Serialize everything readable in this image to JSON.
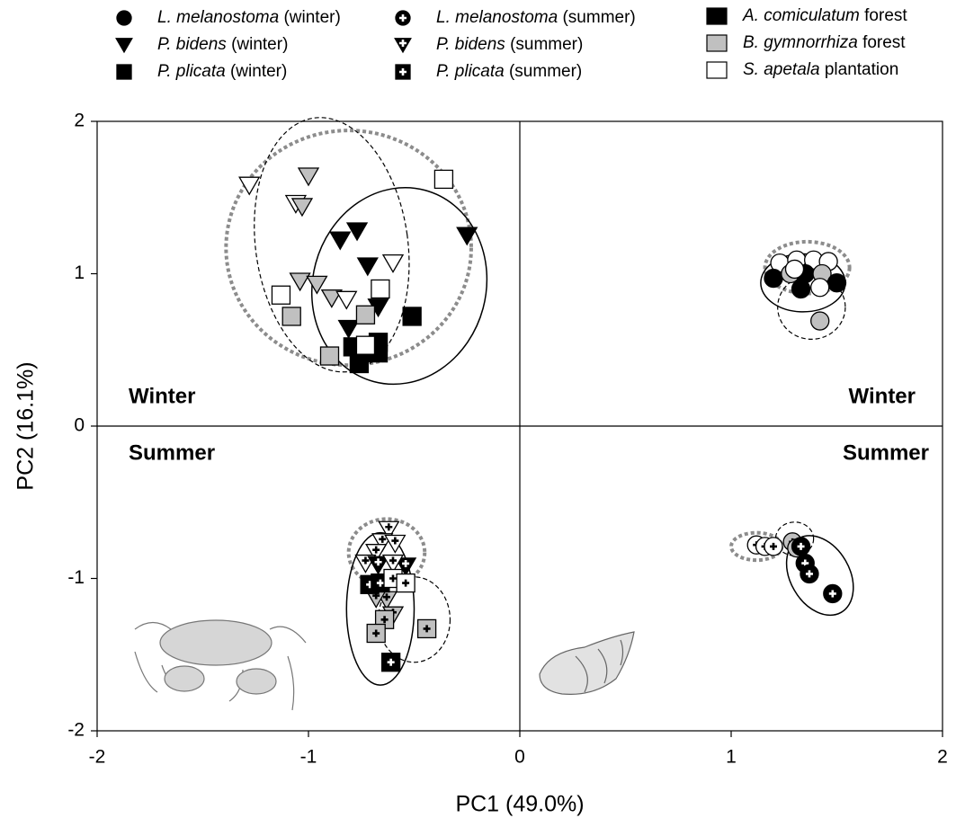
{
  "chart_data": {
    "type": "scatter",
    "x_label": "PC1 (49.0%)",
    "y_label": "PC2 (16.1%)",
    "xlim": [
      -2,
      2
    ],
    "xticks": [
      -2,
      -1,
      0,
      1,
      2
    ],
    "ylim": [
      -2,
      2
    ],
    "yticks": [
      -2,
      -1,
      0,
      1,
      2
    ],
    "zero_lines": true,
    "annotations": [
      "Winter",
      "Winter",
      "Summer",
      "Summer"
    ],
    "habitats": [
      {
        "species": "A. comiculatum",
        "kind": "forest",
        "color": "#000000"
      },
      {
        "species": "B. gymnorrhiza",
        "kind": "forest",
        "color": "#c0c0c0"
      },
      {
        "species": "S. apetala",
        "kind": "plantation",
        "color": "#ffffff"
      }
    ],
    "series": [
      {
        "species": "L. melanostoma",
        "season": "(winter)",
        "marker": "circle",
        "plus": false,
        "points": [
          {
            "x": 1.23,
            "y": 1.07,
            "habitat": 2
          },
          {
            "x": 1.31,
            "y": 1.09,
            "habitat": 2
          },
          {
            "x": 1.39,
            "y": 1.09,
            "habitat": 2
          },
          {
            "x": 1.46,
            "y": 1.08,
            "habitat": 2
          },
          {
            "x": 1.2,
            "y": 0.97,
            "habitat": 0
          },
          {
            "x": 1.28,
            "y": 1.0,
            "habitat": 1
          },
          {
            "x": 1.35,
            "y": 1.0,
            "habitat": 0
          },
          {
            "x": 1.43,
            "y": 1.0,
            "habitat": 1
          },
          {
            "x": 1.5,
            "y": 0.94,
            "habitat": 0
          },
          {
            "x": 1.33,
            "y": 0.9,
            "habitat": 0
          },
          {
            "x": 1.42,
            "y": 0.91,
            "habitat": 2
          },
          {
            "x": 1.3,
            "y": 1.03,
            "habitat": 2
          },
          {
            "x": 1.42,
            "y": 0.69,
            "habitat": 1
          }
        ]
      },
      {
        "species": "L. melanostoma",
        "season": "(summer)",
        "marker": "circle",
        "plus": true,
        "points": [
          {
            "x": 1.12,
            "y": -0.78,
            "habitat": 2
          },
          {
            "x": 1.16,
            "y": -0.79,
            "habitat": 2
          },
          {
            "x": 1.2,
            "y": -0.79,
            "habitat": 2
          },
          {
            "x": 1.29,
            "y": -0.76,
            "habitat": 1
          },
          {
            "x": 1.31,
            "y": -0.8,
            "habitat": 1
          },
          {
            "x": 1.33,
            "y": -0.79,
            "habitat": 0
          },
          {
            "x": 1.35,
            "y": -0.9,
            "habitat": 0
          },
          {
            "x": 1.37,
            "y": -0.97,
            "habitat": 0
          },
          {
            "x": 1.48,
            "y": -1.1,
            "habitat": 0
          }
        ]
      },
      {
        "species": "P. bidens",
        "season": "(winter)",
        "marker": "triangle",
        "plus": false,
        "points": [
          {
            "x": -1.28,
            "y": 1.58,
            "habitat": 2
          },
          {
            "x": -1.0,
            "y": 1.64,
            "habitat": 1
          },
          {
            "x": -1.06,
            "y": 1.46,
            "habitat": 2
          },
          {
            "x": -1.03,
            "y": 1.44,
            "habitat": 1
          },
          {
            "x": -1.04,
            "y": 0.95,
            "habitat": 1
          },
          {
            "x": -0.96,
            "y": 0.93,
            "habitat": 1
          },
          {
            "x": -0.89,
            "y": 0.84,
            "habitat": 1
          },
          {
            "x": -0.82,
            "y": 0.83,
            "habitat": 2
          },
          {
            "x": -0.6,
            "y": 1.07,
            "habitat": 2
          },
          {
            "x": -0.85,
            "y": 1.22,
            "habitat": 0
          },
          {
            "x": -0.77,
            "y": 1.28,
            "habitat": 0
          },
          {
            "x": -0.72,
            "y": 1.05,
            "habitat": 0
          },
          {
            "x": -0.67,
            "y": 0.78,
            "habitat": 0
          },
          {
            "x": -0.81,
            "y": 0.64,
            "habitat": 0
          },
          {
            "x": -0.25,
            "y": 1.25,
            "habitat": 0
          }
        ]
      },
      {
        "species": "P. bidens",
        "season": "(summer)",
        "marker": "triangle",
        "plus": true,
        "points": [
          {
            "x": -0.62,
            "y": -0.68,
            "habitat": 2
          },
          {
            "x": -0.65,
            "y": -0.76,
            "habitat": 2
          },
          {
            "x": -0.59,
            "y": -0.77,
            "habitat": 2
          },
          {
            "x": -0.68,
            "y": -0.83,
            "habitat": 2
          },
          {
            "x": -0.73,
            "y": -0.9,
            "habitat": 2
          },
          {
            "x": -0.67,
            "y": -0.91,
            "habitat": 0
          },
          {
            "x": -0.54,
            "y": -0.92,
            "habitat": 0
          },
          {
            "x": -0.6,
            "y": -0.9,
            "habitat": 2
          },
          {
            "x": -0.63,
            "y": -1.14,
            "habitat": 1
          },
          {
            "x": -0.6,
            "y": -1.24,
            "habitat": 1
          },
          {
            "x": -0.68,
            "y": -1.13,
            "habitat": 1
          }
        ]
      },
      {
        "species": "P. plicata",
        "season": "(winter)",
        "marker": "square",
        "plus": false,
        "points": [
          {
            "x": -0.36,
            "y": 1.62,
            "habitat": 2
          },
          {
            "x": -1.13,
            "y": 0.86,
            "habitat": 2
          },
          {
            "x": -0.66,
            "y": 0.9,
            "habitat": 2
          },
          {
            "x": -1.08,
            "y": 0.72,
            "habitat": 1
          },
          {
            "x": -0.73,
            "y": 0.73,
            "habitat": 1
          },
          {
            "x": -0.9,
            "y": 0.46,
            "habitat": 1
          },
          {
            "x": -0.51,
            "y": 0.72,
            "habitat": 0
          },
          {
            "x": -0.79,
            "y": 0.52,
            "habitat": 0
          },
          {
            "x": -0.67,
            "y": 0.55,
            "habitat": 0
          },
          {
            "x": -0.76,
            "y": 0.41,
            "habitat": 0
          },
          {
            "x": -0.67,
            "y": 0.48,
            "habitat": 0
          },
          {
            "x": -0.73,
            "y": 0.53,
            "habitat": 2
          }
        ]
      },
      {
        "species": "P. plicata",
        "season": "(summer)",
        "marker": "square",
        "plus": true,
        "points": [
          {
            "x": -0.71,
            "y": -1.04,
            "habitat": 0
          },
          {
            "x": -0.66,
            "y": -1.03,
            "habitat": 0
          },
          {
            "x": -0.6,
            "y": -1.0,
            "habitat": 2
          },
          {
            "x": -0.54,
            "y": -1.03,
            "habitat": 2
          },
          {
            "x": -0.64,
            "y": -1.27,
            "habitat": 1
          },
          {
            "x": -0.68,
            "y": -1.36,
            "habitat": 1
          },
          {
            "x": -0.44,
            "y": -1.33,
            "habitat": 1
          },
          {
            "x": -0.61,
            "y": -1.55,
            "habitat": 0
          }
        ]
      }
    ],
    "ellipses": [
      {
        "cx": -0.81,
        "cy": 1.17,
        "rx": 0.58,
        "ry": 0.77,
        "angle": 0,
        "style": "dotted"
      },
      {
        "cx": -0.89,
        "cy": 1.19,
        "rx": 0.36,
        "ry": 0.84,
        "angle": -8,
        "style": "dashed"
      },
      {
        "cx": -0.57,
        "cy": 0.92,
        "rx": 0.41,
        "ry": 0.65,
        "angle": 15,
        "style": "solid"
      },
      {
        "cx": 1.36,
        "cy": 1.04,
        "rx": 0.2,
        "ry": 0.17,
        "angle": 0,
        "style": "dotted"
      },
      {
        "cx": 1.34,
        "cy": 0.94,
        "rx": 0.2,
        "ry": 0.19,
        "angle": 0,
        "style": "solid"
      },
      {
        "cx": 1.38,
        "cy": 0.78,
        "rx": 0.16,
        "ry": 0.21,
        "angle": 0,
        "style": "dashed"
      },
      {
        "cx": -0.63,
        "cy": -0.83,
        "rx": 0.18,
        "ry": 0.22,
        "angle": 0,
        "style": "dotted"
      },
      {
        "cx": -0.66,
        "cy": -1.2,
        "rx": 0.16,
        "ry": 0.5,
        "angle": 0,
        "style": "solid"
      },
      {
        "cx": -0.5,
        "cy": -1.27,
        "rx": 0.17,
        "ry": 0.28,
        "angle": 0,
        "style": "dashed"
      },
      {
        "cx": 1.12,
        "cy": -0.79,
        "rx": 0.12,
        "ry": 0.09,
        "angle": 0,
        "style": "dotted"
      },
      {
        "cx": 1.3,
        "cy": -0.74,
        "rx": 0.09,
        "ry": 0.11,
        "angle": 0,
        "style": "dashed"
      },
      {
        "cx": 1.42,
        "cy": -0.98,
        "rx": 0.14,
        "ry": 0.28,
        "angle": -30,
        "style": "solid"
      }
    ]
  }
}
